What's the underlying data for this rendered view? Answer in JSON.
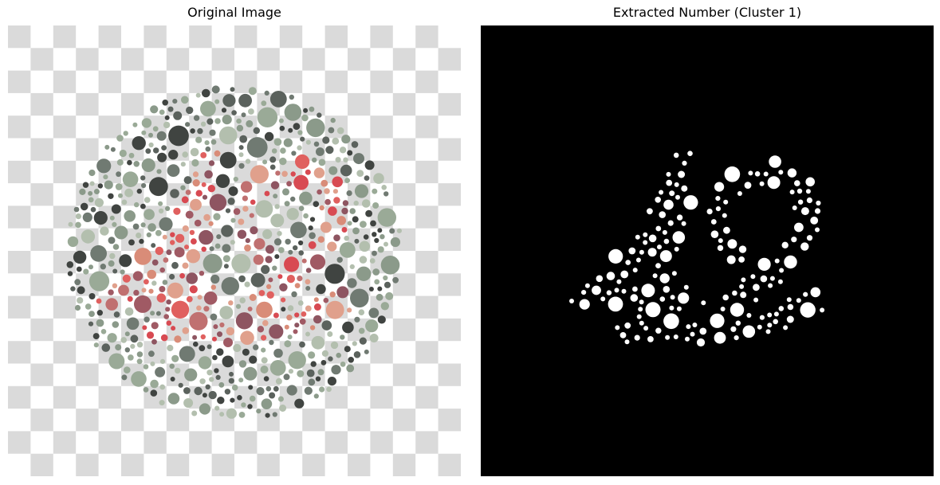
{
  "figure": {
    "left_panel": {
      "title": "Original Image",
      "image": "ishihara-color-plate"
    },
    "right_panel": {
      "title": "Extracted Number (Cluster 1)",
      "image": "binary-mask-digits"
    }
  },
  "colors": {
    "checker_light": "#ffffff",
    "checker_dark": "#dadada",
    "mask_background": "#000000",
    "mask_foreground": "#ffffff",
    "dot_palette_background": [
      "#404441",
      "#5b625d",
      "#707a72",
      "#8b9a8a",
      "#9aaa97",
      "#b3bfae"
    ],
    "dot_palette_figure": [
      "#d84a52",
      "#e0605f",
      "#d98c78",
      "#e0a08c",
      "#c07070",
      "#a05a64",
      "#8e5561"
    ]
  }
}
